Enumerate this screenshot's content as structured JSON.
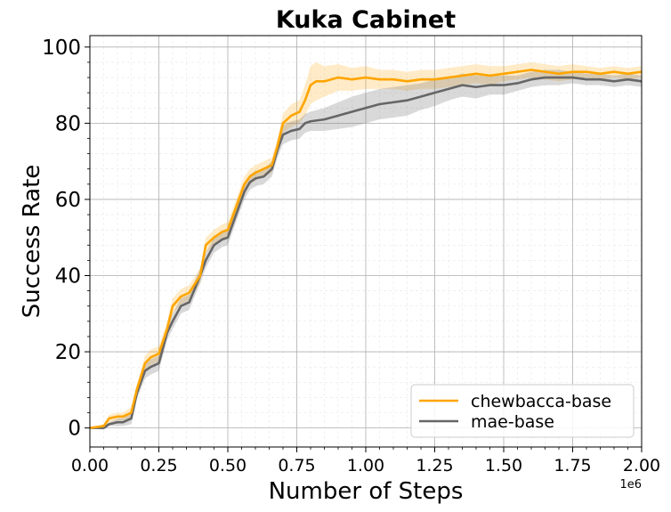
{
  "chart_data": {
    "type": "line",
    "title": "Kuka Cabinet",
    "xlabel": "Number of Steps",
    "ylabel": "Success Rate",
    "x_offset_label": "1e6",
    "xlim": [
      0,
      2.0
    ],
    "ylim": [
      -5,
      103
    ],
    "x_ticks": [
      0.0,
      0.25,
      0.5,
      0.75,
      1.0,
      1.25,
      1.5,
      1.75,
      2.0
    ],
    "x_tick_labels": [
      "0.00",
      "0.25",
      "0.50",
      "0.75",
      "1.00",
      "1.25",
      "1.50",
      "1.75",
      "2.00"
    ],
    "y_ticks": [
      0,
      20,
      40,
      60,
      80,
      100
    ],
    "y_tick_labels": [
      "0",
      "20",
      "40",
      "60",
      "80",
      "100"
    ],
    "grid": true,
    "minor_grid": true,
    "legend_position": "lower-right",
    "series": [
      {
        "name": "chewbacca-base",
        "color": "#FFA500",
        "x": [
          0.0,
          0.05,
          0.07,
          0.1,
          0.12,
          0.15,
          0.17,
          0.2,
          0.22,
          0.25,
          0.28,
          0.3,
          0.33,
          0.36,
          0.4,
          0.42,
          0.45,
          0.48,
          0.5,
          0.53,
          0.56,
          0.58,
          0.6,
          0.63,
          0.66,
          0.68,
          0.7,
          0.73,
          0.76,
          0.78,
          0.8,
          0.82,
          0.85,
          0.9,
          0.95,
          1.0,
          1.05,
          1.1,
          1.15,
          1.2,
          1.25,
          1.3,
          1.35,
          1.4,
          1.45,
          1.5,
          1.55,
          1.6,
          1.65,
          1.7,
          1.75,
          1.8,
          1.85,
          1.9,
          1.95,
          2.0
        ],
        "y": [
          0,
          0.5,
          2.5,
          3,
          3,
          4,
          10,
          17,
          18.5,
          19.5,
          26,
          32,
          34.5,
          35.5,
          40,
          48,
          50,
          51.5,
          52,
          58,
          64,
          66,
          67,
          68,
          69,
          74,
          80,
          82,
          83,
          86,
          90,
          91,
          91,
          92,
          91.5,
          92,
          91.5,
          91.5,
          91,
          91.5,
          91.5,
          92,
          92.5,
          93,
          92.5,
          93,
          93.5,
          94,
          93.5,
          93,
          93.5,
          93.5,
          93,
          93.5,
          93,
          93.5
        ],
        "band": [
          0,
          0.5,
          1,
          1,
          1,
          1.5,
          1.5,
          2,
          2,
          2,
          2,
          2,
          2,
          2,
          2,
          2,
          2,
          2,
          2,
          2,
          2,
          2,
          2,
          2,
          2,
          2,
          2.5,
          3,
          3,
          4,
          5,
          5,
          4,
          3.5,
          3,
          3,
          2.5,
          2.5,
          2.5,
          2.5,
          2.5,
          2.5,
          2.5,
          2.5,
          2.5,
          2,
          2,
          2,
          2,
          2,
          2,
          1.5,
          1.5,
          1.5,
          1.5,
          1.5
        ]
      },
      {
        "name": "mae-base",
        "color": "#666666",
        "x": [
          0.0,
          0.05,
          0.07,
          0.1,
          0.12,
          0.15,
          0.17,
          0.2,
          0.22,
          0.25,
          0.28,
          0.3,
          0.33,
          0.36,
          0.4,
          0.42,
          0.45,
          0.48,
          0.5,
          0.53,
          0.56,
          0.58,
          0.6,
          0.63,
          0.66,
          0.68,
          0.7,
          0.73,
          0.76,
          0.78,
          0.8,
          0.85,
          0.9,
          0.95,
          1.0,
          1.05,
          1.1,
          1.15,
          1.2,
          1.25,
          1.3,
          1.35,
          1.4,
          1.45,
          1.5,
          1.55,
          1.6,
          1.65,
          1.7,
          1.75,
          1.8,
          1.85,
          1.9,
          1.95,
          2.0
        ],
        "y": [
          0,
          0,
          1,
          1.5,
          1.5,
          2.5,
          9,
          15,
          16,
          17,
          25,
          28,
          32,
          33,
          40,
          44,
          48,
          49.5,
          50,
          56,
          62,
          64.5,
          65.5,
          66,
          68,
          73,
          77,
          78,
          78.5,
          80,
          80.5,
          81,
          82,
          83,
          84,
          85,
          85.5,
          86,
          87,
          88,
          89,
          90,
          89.5,
          90,
          90,
          90.5,
          91.5,
          92,
          92,
          92,
          91.5,
          91.5,
          91,
          91.5,
          91
        ],
        "band": [
          0,
          0.5,
          0.5,
          1,
          1,
          1.5,
          1.5,
          2,
          2,
          2,
          2,
          2,
          2,
          2,
          2,
          2,
          2,
          2,
          2,
          2,
          2,
          2,
          2,
          2,
          2,
          2,
          2.5,
          2.5,
          2.5,
          2.5,
          2.5,
          3,
          3.5,
          4,
          4,
          4,
          4,
          4,
          3.5,
          3.5,
          3,
          3,
          3,
          2.5,
          2.5,
          2,
          2,
          2,
          2,
          1.5,
          1.5,
          1.5,
          1.5,
          1.5,
          1.5
        ]
      }
    ]
  }
}
